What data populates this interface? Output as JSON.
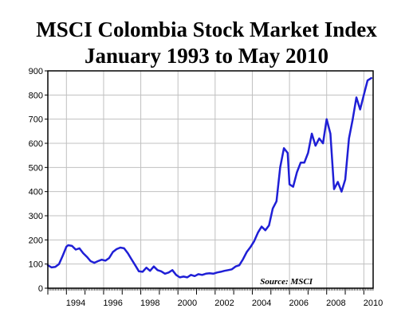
{
  "chart_data": {
    "type": "line",
    "title": "MSCI Colombia Stock Market Index",
    "subtitle": "January 1993 to May 2010",
    "xlabel": "",
    "ylabel": "",
    "source": "Source: MSCI",
    "xlim": [
      1993.0,
      2010.5
    ],
    "ylim": [
      0,
      900
    ],
    "yticks": [
      0,
      100,
      200,
      300,
      400,
      500,
      600,
      700,
      800,
      900
    ],
    "xtick_labels": [
      "1994",
      "1996",
      "1998",
      "2000",
      "2002",
      "2004",
      "2006",
      "2008",
      "2010"
    ],
    "grid": true,
    "colors": {
      "line": "#1f1fd6",
      "grid": "#c0c0c0",
      "axis": "#000000"
    },
    "series": [
      {
        "x": [
          1993.0,
          1993.2,
          1993.4,
          1993.6,
          1993.8,
          1994.0,
          1994.1,
          1994.3,
          1994.5,
          1994.7,
          1994.9,
          1995.1,
          1995.3,
          1995.5,
          1995.7,
          1995.9,
          1996.1,
          1996.3,
          1996.5,
          1996.7,
          1996.9,
          1997.1,
          1997.3,
          1997.5,
          1997.7,
          1997.9,
          1998.1,
          1998.3,
          1998.5,
          1998.7,
          1998.9,
          1999.1,
          1999.3,
          1999.5,
          1999.7,
          1999.9,
          2000.1,
          2000.3,
          2000.5,
          2000.7,
          2000.9,
          2001.1,
          2001.3,
          2001.5,
          2001.7,
          2001.9,
          2002.1,
          2002.3,
          2002.5,
          2002.7,
          2002.9,
          2003.1,
          2003.3,
          2003.5,
          2003.7,
          2003.9,
          2004.1,
          2004.3,
          2004.5,
          2004.7,
          2004.9,
          2005.1,
          2005.3,
          2005.5,
          2005.7,
          2005.9,
          2006.0,
          2006.2,
          2006.4,
          2006.6,
          2006.8,
          2007.0,
          2007.2,
          2007.4,
          2007.6,
          2007.8,
          2008.0,
          2008.2,
          2008.4,
          2008.6,
          2008.8,
          2009.0,
          2009.2,
          2009.4,
          2009.6,
          2009.8,
          2010.0,
          2010.2,
          2010.4
        ],
        "values": [
          95,
          86,
          88,
          100,
          135,
          172,
          178,
          175,
          160,
          165,
          145,
          130,
          112,
          105,
          112,
          118,
          114,
          125,
          150,
          162,
          168,
          165,
          145,
          120,
          95,
          70,
          68,
          85,
          72,
          90,
          75,
          70,
          60,
          65,
          75,
          55,
          45,
          48,
          45,
          55,
          50,
          58,
          55,
          60,
          62,
          60,
          65,
          68,
          72,
          75,
          78,
          90,
          95,
          120,
          150,
          170,
          195,
          230,
          255,
          240,
          260,
          330,
          360,
          500,
          580,
          560,
          430,
          420,
          480,
          520,
          520,
          560,
          640,
          590,
          620,
          600,
          700,
          640,
          410,
          440,
          400,
          450,
          620,
          700,
          790,
          740,
          800,
          860,
          870
        ]
      }
    ]
  }
}
